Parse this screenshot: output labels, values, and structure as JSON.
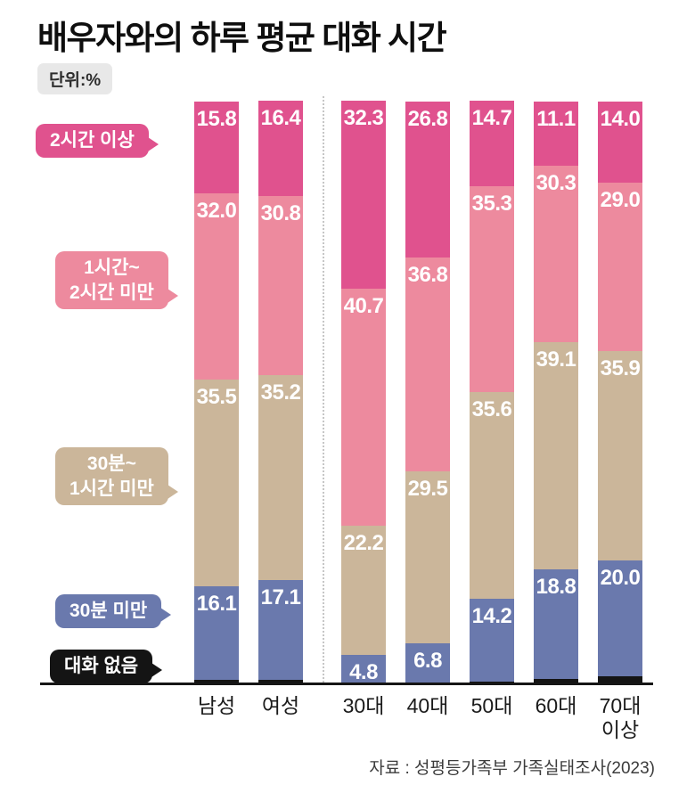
{
  "title": "배우자와의 하루 평균 대화 시간",
  "unit_label": "단위:%",
  "source": "자료 : 성평등가족부 가족실태조사(2023)",
  "chart_data": {
    "type": "bar",
    "stacked": true,
    "orientation": "vertical",
    "value_unit": "%",
    "ylim": [
      0,
      100
    ],
    "grid": false,
    "legend_position": "left-callouts",
    "categories": [
      "남성",
      "여성",
      "30대",
      "40대",
      "50대",
      "60대",
      "70대 이상"
    ],
    "category_lines": [
      [
        "남성"
      ],
      [
        "여성"
      ],
      [
        "30대"
      ],
      [
        "40대"
      ],
      [
        "50대"
      ],
      [
        "60대"
      ],
      [
        "70대",
        "이상"
      ]
    ],
    "separator_after_category": "여성",
    "series": [
      {
        "key": "over-2h",
        "name": "2시간 이상",
        "color": "#e0528e",
        "values": [
          15.8,
          16.4,
          32.3,
          26.8,
          14.7,
          11.1,
          14.0
        ]
      },
      {
        "key": "1h-to-2h",
        "name": "1시간~2시간 미만",
        "color": "#ed8a9e",
        "values": [
          32.0,
          30.8,
          40.7,
          36.8,
          35.3,
          30.3,
          29.0
        ]
      },
      {
        "key": "30m-to-1h",
        "name": "30분~1시간 미만",
        "color": "#cbb69a",
        "values": [
          35.5,
          35.2,
          22.2,
          29.5,
          35.6,
          39.1,
          35.9
        ]
      },
      {
        "key": "under-30m",
        "name": "30분 미만",
        "color": "#6a79ad",
        "values": [
          16.1,
          17.1,
          4.8,
          6.8,
          14.2,
          18.8,
          20.0
        ]
      },
      {
        "key": "no-talk",
        "name": "대화 없음",
        "color": "#141414",
        "values": [
          0.5,
          0.5,
          null,
          null,
          0.2,
          0.6,
          1.0
        ],
        "label_outside": true
      }
    ],
    "legend": [
      {
        "series": "over-2h",
        "lines": [
          "2시간 이상"
        ]
      },
      {
        "series": "1h-to-2h",
        "lines": [
          "1시간~",
          "2시간 미만"
        ]
      },
      {
        "series": "30m-to-1h",
        "lines": [
          "30분~",
          "1시간 미만"
        ]
      },
      {
        "series": "under-30m",
        "lines": [
          "30분 미만"
        ]
      },
      {
        "series": "no-talk",
        "lines": [
          "대화 없음"
        ]
      }
    ]
  }
}
